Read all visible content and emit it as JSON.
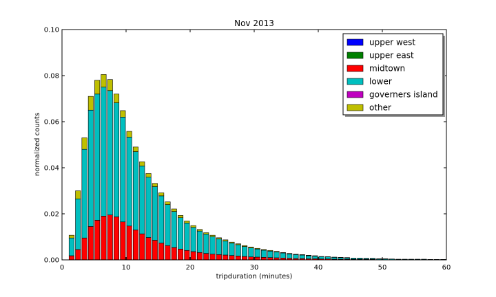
{
  "chart_data": {
    "type": "bar",
    "stacked": true,
    "title": "Nov 2013",
    "xlabel": "tripduration (minutes)",
    "ylabel": "normalized counts",
    "xlim": [
      0,
      60
    ],
    "ylim": [
      0,
      0.1
    ],
    "xticks": [
      0,
      10,
      20,
      30,
      40,
      50,
      60
    ],
    "yticks": [
      0.0,
      0.02,
      0.04,
      0.06,
      0.08,
      0.1
    ],
    "ytick_labels": [
      "0.00",
      "0.02",
      "0.04",
      "0.06",
      "0.08",
      "0.10"
    ],
    "legend_position": "top-right",
    "x": [
      1.5,
      2.5,
      3.5,
      4.5,
      5.5,
      6.5,
      7.5,
      8.5,
      9.5,
      10.5,
      11.5,
      12.5,
      13.5,
      14.5,
      15.5,
      16.5,
      17.5,
      18.5,
      19.5,
      20.5,
      21.5,
      22.5,
      23.5,
      24.5,
      25.5,
      26.5,
      27.5,
      28.5,
      29.5,
      30.5,
      31.5,
      32.5,
      33.5,
      34.5,
      35.5,
      36.5,
      37.5,
      38.5,
      39.5,
      40.5,
      41.5,
      42.5,
      43.5,
      44.5,
      45.5,
      46.5,
      47.5,
      48.5,
      49.5,
      50.5,
      51.5,
      52.5,
      53.5,
      54.5,
      55.5,
      56.5,
      57.5,
      58.5,
      59.5
    ],
    "series": [
      {
        "name": "upper west",
        "color": "#0000ff",
        "values": [
          0,
          0,
          0,
          0,
          0,
          0,
          0,
          0,
          0,
          0,
          0,
          0,
          0,
          0,
          0,
          0,
          0,
          0,
          0,
          0,
          0,
          0,
          0,
          0,
          0,
          0,
          0,
          0,
          0,
          0,
          0,
          0,
          0,
          0,
          0,
          0,
          0,
          0,
          0,
          0,
          0,
          0,
          0,
          0,
          0,
          0,
          0,
          0,
          0,
          0,
          0,
          0,
          0,
          0,
          0,
          0,
          0,
          0,
          0
        ]
      },
      {
        "name": "upper east",
        "color": "#008000",
        "values": [
          0,
          0,
          0,
          0,
          0,
          0,
          0,
          0,
          0,
          0,
          0,
          0,
          0,
          0,
          0,
          0,
          0,
          0,
          0,
          0,
          0,
          0,
          0,
          0,
          0,
          0,
          0,
          0,
          0,
          0,
          0,
          0,
          0,
          0,
          0,
          0,
          0,
          0,
          0,
          0,
          0,
          0,
          0,
          0,
          0,
          0,
          0,
          0,
          0,
          0,
          0,
          0,
          0,
          0,
          0,
          0,
          0,
          0,
          0
        ]
      },
      {
        "name": "midtown",
        "color": "#ff0000",
        "values": [
          0.0018,
          0.0045,
          0.0095,
          0.0145,
          0.0172,
          0.019,
          0.0195,
          0.0187,
          0.0165,
          0.0147,
          0.013,
          0.0113,
          0.0097,
          0.0085,
          0.0073,
          0.0062,
          0.0054,
          0.0047,
          0.0041,
          0.0036,
          0.0032,
          0.0028,
          0.0025,
          0.0023,
          0.0021,
          0.0019,
          0.0017,
          0.0015,
          0.0013,
          0.0012,
          0.0011,
          0.001,
          0.0009,
          0.0008,
          0.0007,
          0.0006,
          0.0006,
          0.0005,
          0.0005,
          0.0004,
          0.0004,
          0.0003,
          0.0003,
          0.0003,
          0.0002,
          0.0002,
          0.0002,
          0.0002,
          0.0001,
          0.0001,
          0.0001,
          0.0001,
          0.0001,
          0.0001,
          0.0001,
          0.0001,
          0.0001,
          0.0001,
          0.0001
        ]
      },
      {
        "name": "lower",
        "color": "#00bfbf",
        "values": [
          0.0077,
          0.022,
          0.0385,
          0.0505,
          0.0548,
          0.056,
          0.054,
          0.0495,
          0.0455,
          0.0386,
          0.034,
          0.0295,
          0.0262,
          0.0233,
          0.0205,
          0.0178,
          0.0156,
          0.0136,
          0.0119,
          0.0105,
          0.0093,
          0.0084,
          0.0076,
          0.0068,
          0.0061,
          0.0054,
          0.0049,
          0.0043,
          0.0039,
          0.0035,
          0.0031,
          0.0028,
          0.0025,
          0.0022,
          0.0019,
          0.0017,
          0.0015,
          0.0013,
          0.0011,
          0.001,
          0.0009,
          0.0008,
          0.0007,
          0.0006,
          0.0005,
          0.0005,
          0.0004,
          0.0004,
          0.0003,
          0.0003,
          0.0003,
          0.0002,
          0.0002,
          0.0002,
          0.0002,
          0.0002,
          0.0001,
          0.0001,
          0.0001
        ]
      },
      {
        "name": "governers island",
        "color": "#bf00bf",
        "values": [
          0,
          0,
          0,
          0,
          0,
          0,
          0,
          0,
          0,
          0,
          0,
          0,
          0,
          0,
          0,
          0,
          0,
          0,
          0,
          0,
          0,
          0,
          0,
          0,
          0,
          0,
          0,
          0,
          0,
          0,
          0,
          0,
          0,
          0,
          0,
          0,
          0,
          0,
          0,
          0,
          0,
          0,
          0,
          0,
          0,
          0,
          0,
          0,
          0,
          0,
          0,
          0,
          0,
          0,
          0,
          0,
          0,
          0,
          0
        ]
      },
      {
        "name": "other",
        "color": "#bfbf00",
        "values": [
          0.0012,
          0.0035,
          0.005,
          0.006,
          0.006,
          0.0055,
          0.0048,
          0.0038,
          0.0028,
          0.0025,
          0.002,
          0.0018,
          0.0016,
          0.0014,
          0.0013,
          0.0012,
          0.0011,
          0.001,
          0.0009,
          0.0008,
          0.0007,
          0.0006,
          0.0006,
          0.0005,
          0.0005,
          0.0004,
          0.0004,
          0.0004,
          0.0004,
          0.0003,
          0.0003,
          0.0003,
          0.0003,
          0.0002,
          0.0002,
          0.0002,
          0.0002,
          0.0002,
          0.0002,
          0.0001,
          0.0001,
          0.0001,
          0.0001,
          0.0001,
          0.0001,
          0.0001,
          0.0001,
          0.0001,
          0.0001,
          0.0001,
          0,
          0,
          0,
          0,
          0,
          0,
          0,
          0,
          0
        ]
      }
    ]
  }
}
